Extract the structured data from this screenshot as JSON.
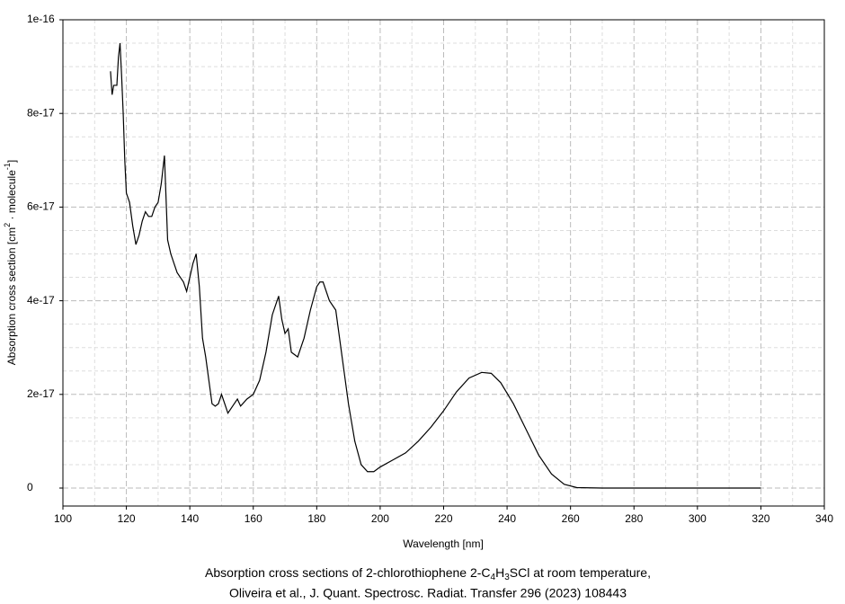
{
  "chart_data": {
    "type": "line",
    "x_label": "Wavelength [nm]",
    "y_label": [
      "Absorption cross section [cm",
      "2",
      " · molecule",
      "-1",
      "]"
    ],
    "caption": {
      "line1": [
        "Absorption cross sections of 2-chlorothiophene 2-C",
        "4",
        "H",
        "3",
        "SCl at room temperature,"
      ],
      "line2": "Oliveira et al., J. Quant. Spectrosc. Radiat. Transfer 296 (2023) 108443"
    },
    "x": [
      115,
      115.5,
      116,
      117,
      117.5,
      118,
      118.5,
      119,
      119.5,
      120,
      121,
      122,
      123,
      124,
      125,
      126,
      127,
      128,
      129,
      130,
      131,
      132,
      132.5,
      133,
      134,
      135,
      136,
      137,
      138,
      139,
      140,
      141,
      142,
      143,
      144,
      145,
      146,
      147,
      148,
      149,
      150,
      151,
      152,
      153,
      154,
      155,
      156,
      158,
      160,
      162,
      164,
      166,
      167,
      168,
      169,
      170,
      171,
      172,
      174,
      176,
      178,
      180,
      181,
      182,
      184,
      186,
      188,
      190,
      192,
      194,
      196,
      198,
      200,
      204,
      208,
      212,
      216,
      220,
      224,
      228,
      232,
      235,
      238,
      242,
      246,
      250,
      254,
      258,
      262,
      270,
      280,
      300,
      320
    ],
    "series": [
      {
        "color": "#000000",
        "values": [
          8.9e-17,
          8.4e-17,
          8.6e-17,
          8.6e-17,
          9.2e-17,
          9.5e-17,
          8.8e-17,
          8e-17,
          7e-17,
          6.3e-17,
          6.1e-17,
          5.6e-17,
          5.2e-17,
          5.4e-17,
          5.7e-17,
          5.9e-17,
          5.8e-17,
          5.8e-17,
          6e-17,
          6.1e-17,
          6.5e-17,
          7.1e-17,
          6.2e-17,
          5.3e-17,
          5e-17,
          4.8e-17,
          4.6e-17,
          4.5e-17,
          4.4e-17,
          4.2e-17,
          4.5e-17,
          4.8e-17,
          5e-17,
          4.3e-17,
          3.2e-17,
          2.8e-17,
          2.3e-17,
          1.8e-17,
          1.75e-17,
          1.8e-17,
          2e-17,
          1.8e-17,
          1.6e-17,
          1.7e-17,
          1.8e-17,
          1.9e-17,
          1.75e-17,
          1.9e-17,
          2e-17,
          2.3e-17,
          2.9e-17,
          3.7e-17,
          3.9e-17,
          4.1e-17,
          3.6e-17,
          3.3e-17,
          3.4e-17,
          2.9e-17,
          2.8e-17,
          3.2e-17,
          3.8e-17,
          4.3e-17,
          4.4e-17,
          4.4e-17,
          4e-17,
          3.8e-17,
          2.8e-17,
          1.8e-17,
          1e-17,
          5e-18,
          3.5e-18,
          3.5e-18,
          4.5e-18,
          6e-18,
          7.5e-18,
          1e-17,
          1.3e-17,
          1.65e-17,
          2.05e-17,
          2.35e-17,
          2.47e-17,
          2.45e-17,
          2.25e-17,
          1.8e-17,
          1.25e-17,
          7e-18,
          3e-18,
          8e-19,
          1e-19,
          0,
          0,
          0,
          0
        ]
      }
    ],
    "xlim": [
      100,
      340
    ],
    "xticks": [
      100,
      120,
      140,
      160,
      180,
      200,
      220,
      240,
      260,
      280,
      300,
      320,
      340
    ],
    "ylim": [
      -3.84e-18,
      1e-16
    ],
    "yticks": [
      0,
      2e-17,
      4e-17,
      6e-17,
      8e-17,
      1e-16
    ],
    "grid": true,
    "minor_grid": true
  }
}
